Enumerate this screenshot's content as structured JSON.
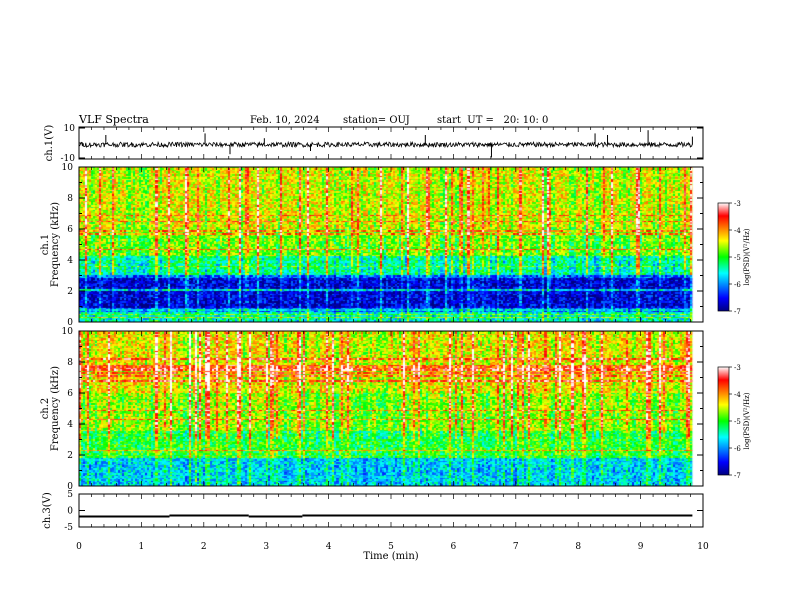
{
  "header": {
    "title": "VLF Spectra",
    "date": "Feb. 10, 2024",
    "station": "station= OUJ",
    "start": "start  UT =   20: 10: 0"
  },
  "chart_data": [
    {
      "type": "line",
      "name": "ch1-waveform",
      "ylabel": "ch.1(V)",
      "ylim": [
        -10,
        10
      ],
      "y_ticks": [
        "10",
        "-10"
      ],
      "xlim": [
        0,
        10
      ],
      "baseline_v": -1,
      "noise_amp_v": 1.5,
      "spikes": [
        {
          "x": 0.43,
          "y": 5
        },
        {
          "x": 2.02,
          "y": 6
        },
        {
          "x": 2.42,
          "y": -7
        },
        {
          "x": 2.97,
          "y": 3
        },
        {
          "x": 3.71,
          "y": -5
        },
        {
          "x": 5.55,
          "y": 5
        },
        {
          "x": 6.61,
          "y": -9
        },
        {
          "x": 8.27,
          "y": 6
        },
        {
          "x": 8.47,
          "y": 5
        },
        {
          "x": 9.12,
          "y": 8
        },
        {
          "x": 9.83,
          "y": 4
        }
      ]
    },
    {
      "type": "heatmap",
      "name": "ch1-spectrogram",
      "ylabel": "ch.1\nFrequency (kHz)",
      "xlim": [
        0,
        10
      ],
      "ylim": [
        0,
        10
      ],
      "y_ticks": [
        0,
        2,
        4,
        6,
        8,
        10
      ],
      "colorbar": {
        "label": "log(PSD)(V²/Hz)",
        "range": [
          -7,
          -3
        ],
        "ticks": [
          "-3",
          "-4",
          "-5",
          "-6",
          "-7"
        ]
      }
    },
    {
      "type": "heatmap",
      "name": "ch2-spectrogram",
      "ylabel": "ch.2\nFrequency (kHz)",
      "xlim": [
        0,
        10
      ],
      "ylim": [
        0,
        10
      ],
      "y_ticks": [
        0,
        2,
        4,
        6,
        8,
        10
      ],
      "colorbar": {
        "label": "log(PSD)(V²/Hz)",
        "range": [
          -7,
          -3
        ],
        "ticks": [
          "-3",
          "-4",
          "-5",
          "-6",
          "-7"
        ]
      }
    },
    {
      "type": "line",
      "name": "ch3-signal",
      "ylabel": "ch.3(V)",
      "ylim": [
        -5,
        5
      ],
      "y_ticks": [
        "5",
        "0",
        "-5"
      ],
      "xlim": [
        0,
        10
      ],
      "xlabel": "Time (min)",
      "x_ticks": [
        0,
        1,
        2,
        3,
        4,
        5,
        6,
        7,
        8,
        9,
        10
      ],
      "segments": [
        {
          "x0": 0,
          "x1": 1.45,
          "y": -1.8
        },
        {
          "x0": 1.45,
          "x1": 2.72,
          "y": -1.5
        },
        {
          "x0": 2.72,
          "x1": 3.58,
          "y": -1.8
        },
        {
          "x0": 3.58,
          "x1": 9.83,
          "y": -1.5
        }
      ]
    }
  ]
}
